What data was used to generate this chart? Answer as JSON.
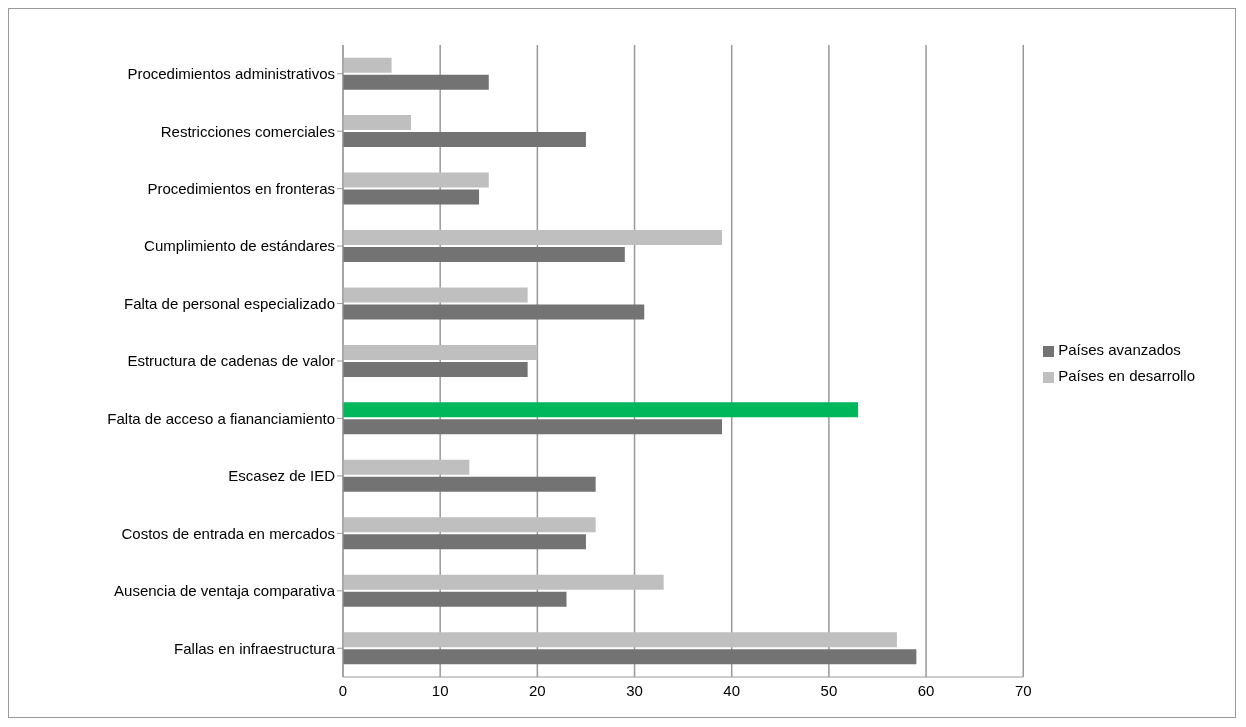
{
  "chart_data": {
    "type": "bar",
    "orientation": "horizontal",
    "categories": [
      "Procedimientos administrativos",
      "Restricciones comerciales",
      "Procedimientos en fronteras",
      "Cumplimiento de estándares",
      "Falta de personal especializado",
      "Estructura de cadenas de valor",
      "Falta de acceso a fiananciamiento",
      "Escasez de IED",
      "Costos de entrada en mercados",
      "Ausencia de ventaja comparativa",
      "Fallas en infraestructura"
    ],
    "series": [
      {
        "name": "Países en desarrollo",
        "color": "#bfbfbf",
        "colors": [
          "#bfbfbf",
          "#bfbfbf",
          "#bfbfbf",
          "#bfbfbf",
          "#bfbfbf",
          "#bfbfbf",
          "#00b75b",
          "#bfbfbf",
          "#bfbfbf",
          "#bfbfbf",
          "#bfbfbf"
        ],
        "values": [
          5,
          7,
          15,
          39,
          19,
          20,
          53,
          13,
          26,
          33,
          57
        ]
      },
      {
        "name": "Países avanzados",
        "color": "#737373",
        "values": [
          15,
          25,
          14,
          29,
          31,
          19,
          39,
          26,
          25,
          23,
          59
        ]
      }
    ],
    "xlim": [
      0,
      70
    ],
    "xticks": [
      0,
      10,
      20,
      30,
      40,
      50,
      60,
      70
    ],
    "grid": "x",
    "legend": "right"
  }
}
